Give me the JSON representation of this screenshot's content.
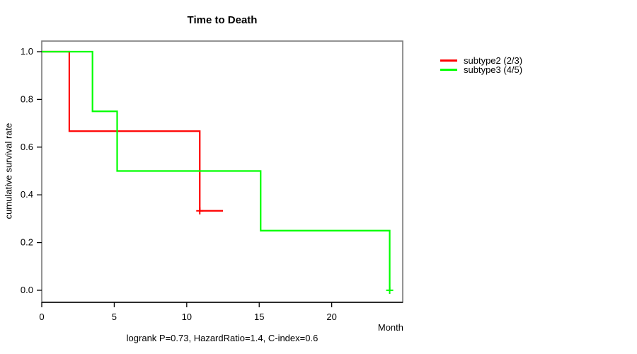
{
  "page": {
    "background": "#ffffff"
  },
  "chart_data": {
    "type": "line",
    "variant": "kaplan_meier_step",
    "title": "Time to Death",
    "xlabel": "Month",
    "ylabel": "cumulative survival rate",
    "footnote": "logrank P=0.73, HazardRatio=1.4, C-index=0.6",
    "xlim": [
      0,
      24.9
    ],
    "ylim": [
      0,
      1
    ],
    "xticks": [
      0,
      5,
      10,
      15,
      20
    ],
    "ytick_labels": [
      "0.0",
      "0.2",
      "0.4",
      "0.6",
      "0.8",
      "1.0"
    ],
    "grid": false,
    "box_color": "#7a7a7a",
    "axis_color": "#000000",
    "legend": {
      "position": "right-outside",
      "entries": [
        {
          "label": "subtype2 (2/3)",
          "color": "#ff0000"
        },
        {
          "label": "subtype3 (4/5)",
          "color": "#00ff00"
        }
      ]
    },
    "series": [
      {
        "name": "subtype2 (2/3)",
        "color": "#ff0000",
        "steps": [
          [
            0,
            1.0
          ],
          [
            1.9,
            1.0
          ],
          [
            1.9,
            0.667
          ],
          [
            10.9,
            0.667
          ],
          [
            10.9,
            0.333
          ],
          [
            12.5,
            0.333
          ]
        ],
        "censored": [
          [
            10.9,
            0.333
          ]
        ]
      },
      {
        "name": "subtype3 (4/5)",
        "color": "#00ff00",
        "steps": [
          [
            0,
            1.0
          ],
          [
            3.5,
            1.0
          ],
          [
            3.5,
            0.75
          ],
          [
            5.2,
            0.75
          ],
          [
            5.2,
            0.5
          ],
          [
            15.1,
            0.5
          ],
          [
            15.1,
            0.25
          ],
          [
            24.0,
            0.25
          ],
          [
            24.0,
            0.0
          ]
        ],
        "censored": [
          [
            24.0,
            0.0
          ]
        ]
      }
    ]
  }
}
